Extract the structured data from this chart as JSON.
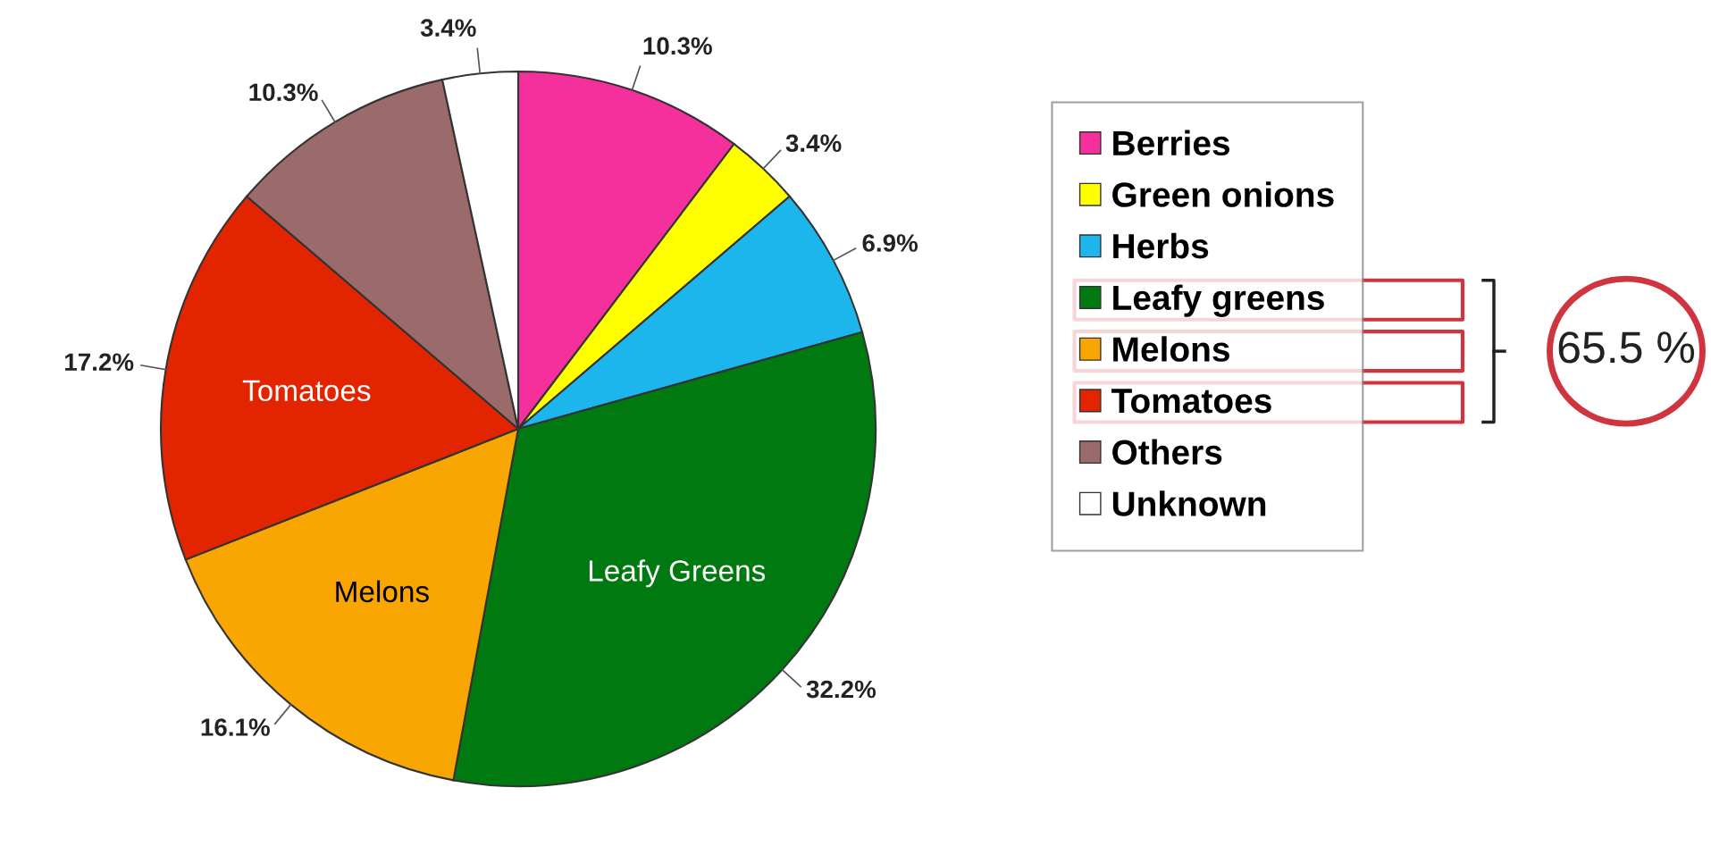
{
  "chart_data": {
    "type": "pie",
    "categories": [
      "Berries",
      "Green onions",
      "Herbs",
      "Leafy greens",
      "Melons",
      "Tomatoes",
      "Others",
      "Unknown"
    ],
    "values": [
      10.3,
      3.4,
      6.9,
      32.2,
      16.1,
      17.2,
      10.3,
      3.4
    ],
    "value_labels": [
      "10.3%",
      "3.4%",
      "6.9%",
      "32.2%",
      "16.1%",
      "17.2%",
      "10.3%",
      "3.4%"
    ],
    "colors": [
      "#f5309c",
      "#ffff00",
      "#1cb6ec",
      "#007a10",
      "#f9a602",
      "#e22500",
      "#9b6a6b",
      "#ffffff"
    ],
    "legend": "right",
    "annotations": [
      {
        "text": "Tomatoes",
        "x": "Tomatoes"
      },
      {
        "text": "Melons",
        "x": "Melons"
      },
      {
        "text": "Leafy Greens",
        "x": "Leafy greens"
      },
      "65.5 %"
    ]
  }
}
